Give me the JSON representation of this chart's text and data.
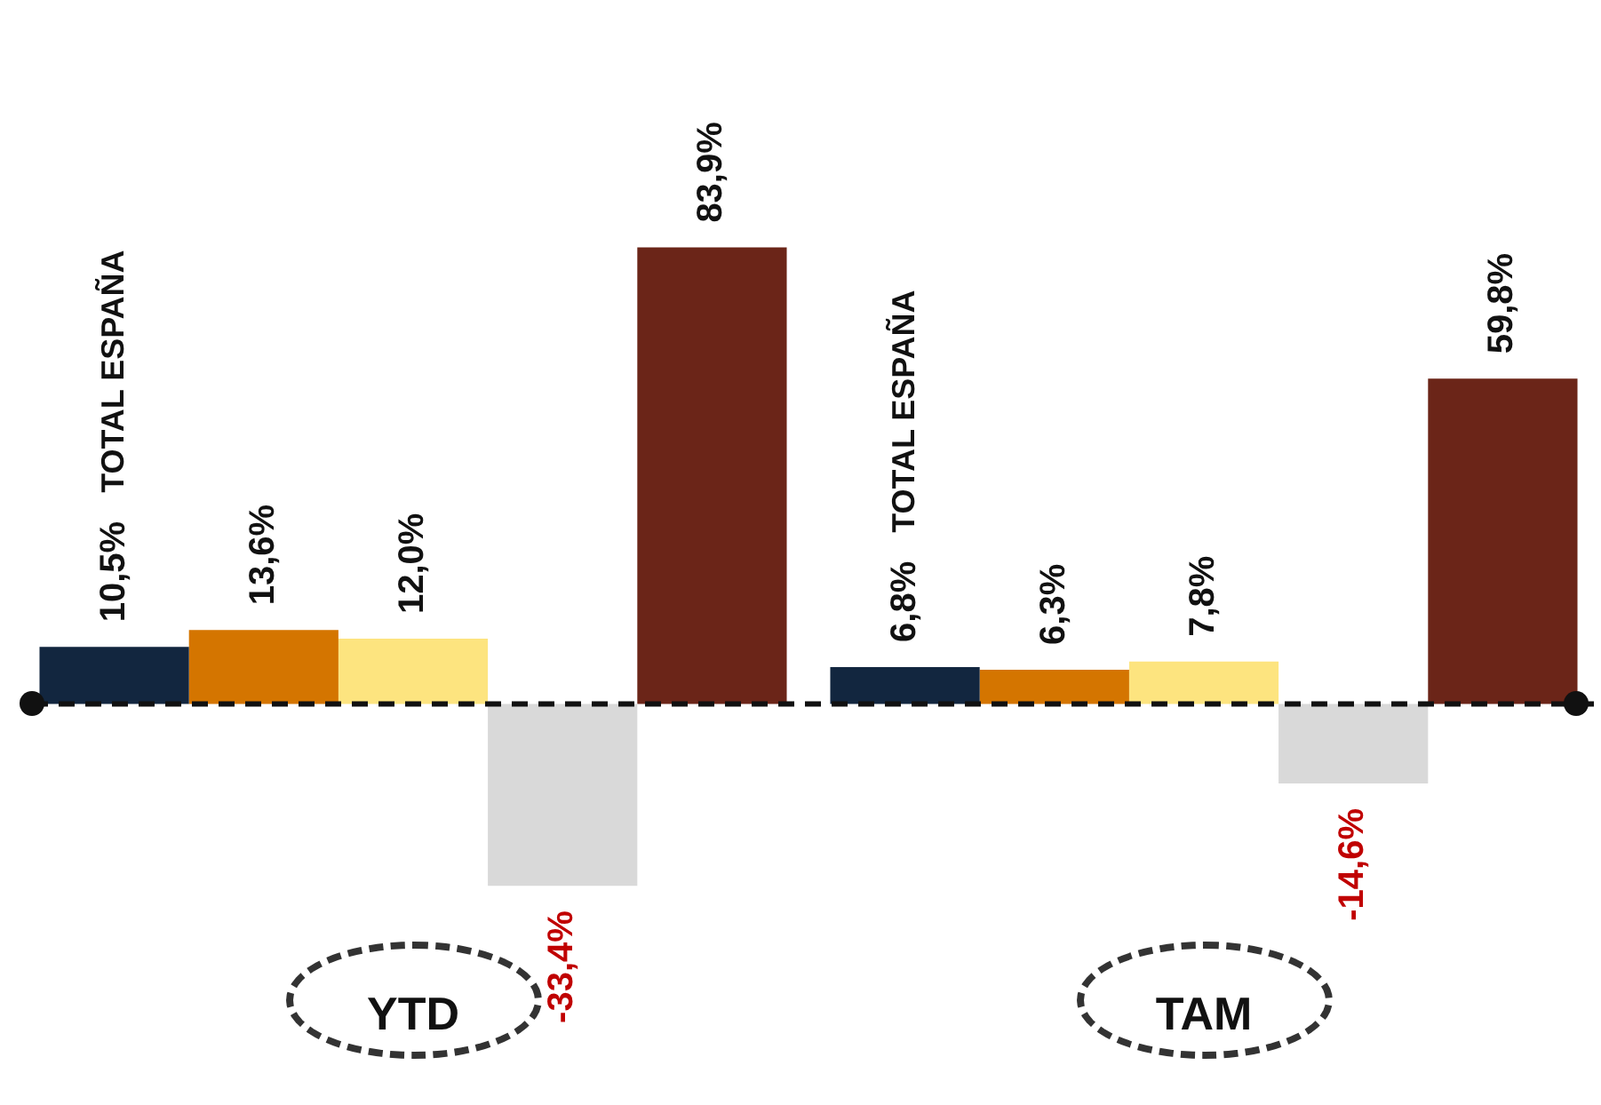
{
  "chart_data": {
    "type": "bar",
    "categories": [
      "YTD",
      "TAM"
    ],
    "series": [
      {
        "name": "TOTAL ESPAÑA",
        "color": "#12263f",
        "values": [
          10.5,
          6.8
        ],
        "value_labels": [
          "10,5%",
          "6,8%"
        ]
      },
      {
        "color": "#d47500",
        "values": [
          13.6,
          6.3
        ],
        "value_labels": [
          "13,6%",
          "6,3%"
        ]
      },
      {
        "color": "#fde47f",
        "values": [
          12.0,
          7.8
        ],
        "value_labels": [
          "12,0%",
          "7,8%"
        ]
      },
      {
        "color": "#d9d9d9",
        "values": [
          -33.4,
          -14.6
        ],
        "value_labels": [
          "-33,4%",
          "-14,6%"
        ]
      },
      {
        "color": "#6b2518",
        "values": [
          83.9,
          59.8
        ],
        "value_labels": [
          "83,9%",
          "59,8%"
        ]
      }
    ],
    "ref_lines": [
      {
        "axis": "y",
        "value": 0,
        "color": "#111111",
        "line_style": "dashed"
      }
    ],
    "tick_labels": "x",
    "grid": false,
    "legend": false
  }
}
